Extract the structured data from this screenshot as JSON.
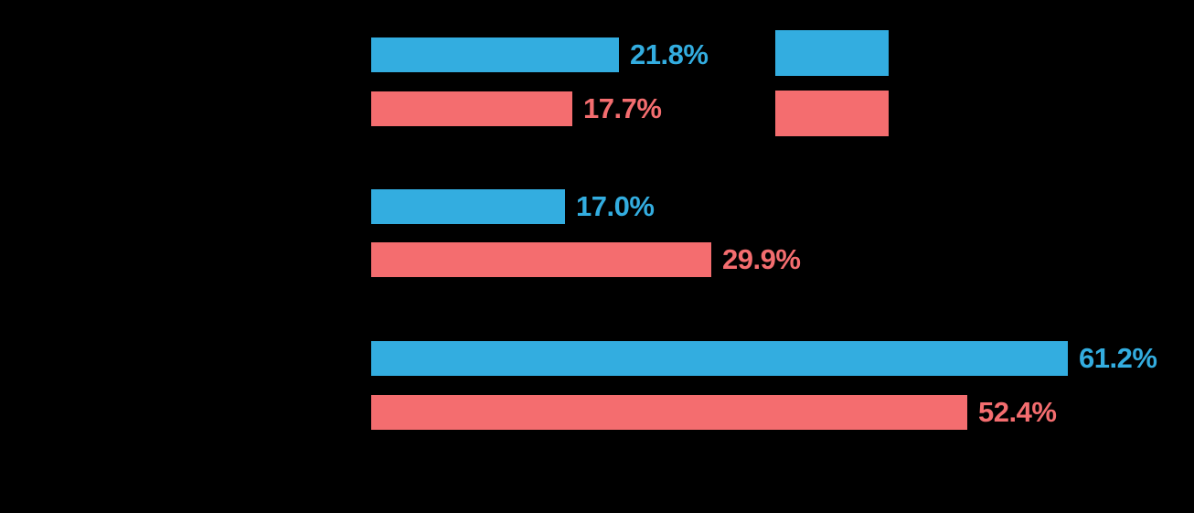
{
  "chart_data": {
    "type": "bar",
    "orientation": "horizontal",
    "title": "",
    "xlabel": "",
    "ylabel": "",
    "xlim": [
      0,
      100
    ],
    "grid": false,
    "axis_text_visible": false,
    "categories": [
      "",
      "",
      ""
    ],
    "series": [
      {
        "name": "",
        "color": "#33ade0",
        "values": [
          21.8,
          17.0,
          61.2
        ],
        "value_labels": [
          "21.8%",
          "17.0%",
          "61.2%"
        ]
      },
      {
        "name": "",
        "color": "#f46d6f",
        "values": [
          17.7,
          29.9,
          52.4
        ],
        "value_labels": [
          "17.7%",
          "29.9%",
          "52.4%"
        ]
      }
    ],
    "legend": {
      "position": "top-right",
      "entries": [
        {
          "label": "",
          "color": "#33ade0"
        },
        {
          "label": "",
          "color": "#f46d6f"
        }
      ]
    }
  },
  "colors": {
    "background": "#000000",
    "series1": "#33ade0",
    "series2": "#f46d6f"
  }
}
